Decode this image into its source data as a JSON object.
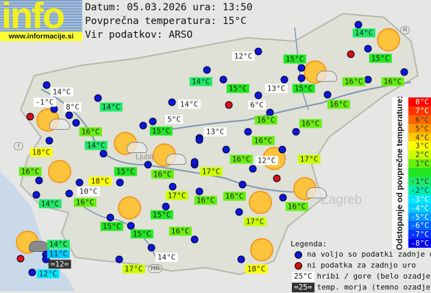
{
  "logo": {
    "word": "info",
    "url": "www.informacije.si"
  },
  "header": {
    "date_line": "Datum: 05.03.2026 ura: 13:50",
    "avg_line": "Povprečna temperatura: 15°C",
    "source_line": "Vir podatkov: ARSO"
  },
  "map_labels": {
    "ljubljana": "Ljubljana",
    "zagreb": "Zagreb",
    "hr": "HR",
    "h": "H",
    "i": "I"
  },
  "colors": {
    "station_available": "#0a16d8",
    "station_missing": "#d80f0f",
    "white_bg": "#ffffff",
    "sea_bg": "#333333"
  },
  "stations": [
    {
      "temp": "14°C",
      "style": "d-1"
    },
    {
      "temp": "12°C",
      "style": "mountain"
    },
    {
      "temp": "15°C",
      "style": "d0"
    },
    {
      "temp": "15°C",
      "style": "d0"
    },
    {
      "temp": "14°C",
      "style": "mountain"
    },
    {
      "temp": "14°C",
      "style": "d-1"
    },
    {
      "temp": "15°C",
      "style": "d0"
    },
    {
      "temp": "13°C",
      "style": "mountain"
    },
    {
      "temp": "15°C",
      "style": "d0"
    },
    {
      "temp": "16°C",
      "style": "d1"
    },
    {
      "temp": "16°C",
      "style": "d1"
    },
    {
      "temp": "-1°C",
      "style": "mountain"
    },
    {
      "temp": "8°C",
      "style": "mountain"
    },
    {
      "temp": "14°C",
      "style": "d-1"
    },
    {
      "temp": "14°C",
      "style": "mountain"
    },
    {
      "temp": "6°C",
      "style": "mountain"
    },
    {
      "temp": "16°C",
      "style": "d1"
    },
    {
      "temp": "5°C",
      "style": "mountain"
    },
    {
      "temp": "16°C",
      "style": "d1"
    },
    {
      "temp": "15°C",
      "style": "d0"
    },
    {
      "temp": "13°C",
      "style": "mountain"
    },
    {
      "temp": "16°C",
      "style": "d1"
    },
    {
      "temp": "16°C",
      "style": "d1"
    },
    {
      "temp": "14°C",
      "style": "d-1"
    },
    {
      "temp": "18°C",
      "style": "d3"
    },
    {
      "temp": "16°C",
      "style": "d1"
    },
    {
      "temp": "16°C",
      "style": "d1"
    },
    {
      "temp": "12°C",
      "style": "mountain"
    },
    {
      "temp": "17°C",
      "style": "d2"
    },
    {
      "temp": "16°C",
      "style": "d1"
    },
    {
      "temp": "15°C",
      "style": "d0"
    },
    {
      "temp": "16°C",
      "style": "d1"
    },
    {
      "temp": "17°C",
      "style": "d2"
    },
    {
      "temp": "18°C",
      "style": "d3"
    },
    {
      "temp": "10°C",
      "style": "mountain"
    },
    {
      "temp": "14°C",
      "style": "d-1"
    },
    {
      "temp": "16°C",
      "style": "d1"
    },
    {
      "temp": "17°C",
      "style": "d2"
    },
    {
      "temp": "16°C",
      "style": "d1"
    },
    {
      "temp": "16°C",
      "style": "d1"
    },
    {
      "temp": "16°C",
      "style": "d1"
    },
    {
      "temp": "15°C",
      "style": "d0"
    },
    {
      "temp": "17°C",
      "style": "d2"
    },
    {
      "temp": "15°C",
      "style": "d0"
    },
    {
      "temp": "15°C",
      "style": "d0"
    },
    {
      "temp": "16°C",
      "style": "d1"
    },
    {
      "temp": "14°C",
      "style": "d-1"
    },
    {
      "temp": "11°C",
      "style": "d-4"
    },
    {
      "temp": "=12=",
      "style": "sea"
    },
    {
      "temp": "12°C",
      "style": "d-3"
    },
    {
      "temp": "17°C",
      "style": "d2"
    },
    {
      "temp": "14°C",
      "style": "mountain"
    },
    {
      "temp": "18°C",
      "style": "d3"
    }
  ],
  "scale": {
    "title": "Odstopanje od povprečne temperature:",
    "rows": [
      {
        "label": "8°C",
        "color": "#ff0000"
      },
      {
        "label": "7°C",
        "color": "#ff3300"
      },
      {
        "label": "6°C",
        "color": "#ff6600"
      },
      {
        "label": "5°C",
        "color": "#ff9900"
      },
      {
        "label": "4°C",
        "color": "#ffcc00"
      },
      {
        "label": "3°C",
        "color": "#ffff00"
      },
      {
        "label": "2°C",
        "color": "#ccff00"
      },
      {
        "label": "1°C",
        "color": "#66ee11"
      },
      {
        "label": "",
        "color": "#22e622"
      },
      {
        "label": "-1°C",
        "color": "#1ee868"
      },
      {
        "label": "-2°C",
        "color": "#00eeaa"
      },
      {
        "label": "-3°C",
        "color": "#00e5ff"
      },
      {
        "label": "-4°C",
        "color": "#00ccff"
      },
      {
        "label": "-5°C",
        "color": "#0099ff"
      },
      {
        "label": "-6°C",
        "color": "#0066ff"
      },
      {
        "label": "-7°C",
        "color": "#0033ff"
      },
      {
        "label": "-8°C",
        "color": "#0000ee"
      }
    ]
  },
  "legend": {
    "title": "Legenda:",
    "available": "na voljo so podatki zadnje ure",
    "missing": "ni podatka za zadnjo uro",
    "mountain_sample": "25°C",
    "mountain_text": "hribi / gore (belo ozadje)",
    "sea_sample": "=25=",
    "sea_text": "temp. morja (temno ozadje)"
  }
}
